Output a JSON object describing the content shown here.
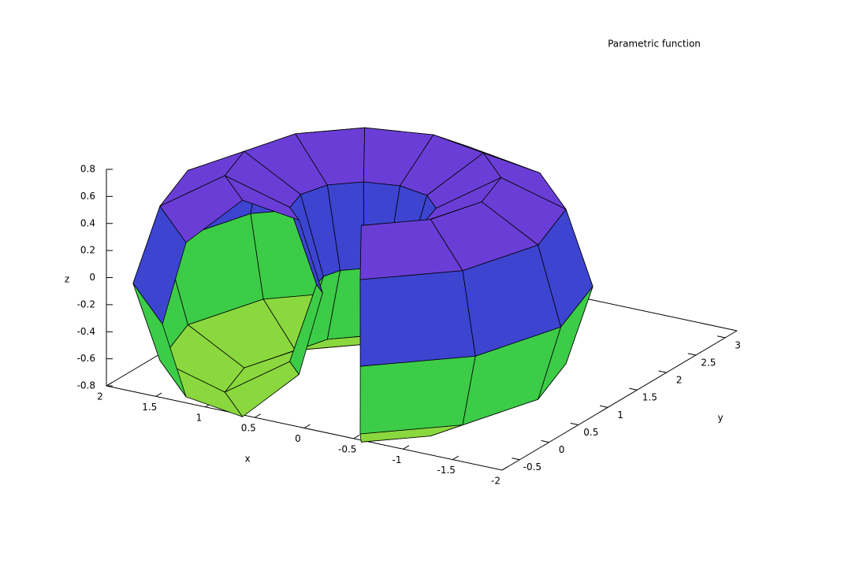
{
  "chart_data": {
    "type": "surface3d",
    "series": [
      {
        "name": "Parametric function",
        "x": [
          [
            1,
            0.88,
            0.6,
            0.32,
            0.2,
            0.32,
            0.6,
            0.88
          ],
          [
            1.73,
            1.53,
            1.04,
            0.55,
            0.35,
            0.55,
            1.04,
            1.53
          ],
          [
            2,
            1.77,
            1.2,
            0.63,
            0.4,
            0.63,
            1.2,
            1.77
          ],
          [
            1.73,
            1.53,
            1.04,
            0.55,
            0.35,
            0.55,
            1.04,
            1.53
          ],
          [
            1,
            0.88,
            0.6,
            0.32,
            0.2,
            0.32,
            0.6,
            0.88
          ],
          [
            0,
            0,
            0,
            0,
            0,
            0,
            0,
            0
          ],
          [
            -1,
            -0.88,
            -0.6,
            -0.32,
            -0.2,
            -0.32,
            -0.6,
            -0.88
          ],
          [
            -1.73,
            -1.53,
            -1.04,
            -0.55,
            -0.35,
            -0.55,
            -1.04,
            -1.53
          ],
          [
            -2,
            -1.77,
            -1.2,
            -0.63,
            -0.4,
            -0.63,
            -1.2,
            -1.77
          ],
          [
            -1.73,
            -1.53,
            -1.04,
            -0.55,
            -0.35,
            -0.55,
            -1.04,
            -1.53
          ],
          [
            -1,
            -0.88,
            -0.6,
            -0.32,
            -0.2,
            -0.32,
            -0.6,
            -0.88
          ]
        ],
        "y": [
          [
            -1.53,
            -1.33,
            -0.84,
            -0.35,
            -0.15,
            -0.35,
            -0.84,
            -1.33
          ],
          [
            -0.8,
            -0.68,
            -0.4,
            -0.12,
            0,
            -0.12,
            -0.4,
            -0.68
          ],
          [
            0.2,
            0.2,
            0.2,
            0.2,
            0.2,
            0.2,
            0.2,
            0.2
          ],
          [
            1.2,
            1.08,
            0.8,
            0.52,
            0.4,
            0.52,
            0.8,
            1.08
          ],
          [
            1.93,
            1.73,
            1.24,
            0.75,
            0.55,
            0.75,
            1.24,
            1.73
          ],
          [
            2.2,
            1.97,
            1.4,
            0.83,
            0.6,
            0.83,
            1.4,
            1.97
          ],
          [
            1.93,
            1.73,
            1.24,
            0.75,
            0.55,
            0.75,
            1.24,
            1.73
          ],
          [
            1.2,
            1.08,
            0.8,
            0.52,
            0.4,
            0.52,
            0.8,
            1.08
          ],
          [
            0.2,
            0.2,
            0.2,
            0.2,
            0.2,
            0.2,
            0.2,
            0.2
          ],
          [
            -0.8,
            -0.68,
            -0.4,
            -0.12,
            0,
            -0.12,
            -0.4,
            -0.68
          ],
          [
            -1.53,
            -1.33,
            -0.84,
            -0.35,
            -0.15,
            -0.35,
            -0.84,
            -1.33
          ]
        ],
        "z": [
          [
            0,
            0.57,
            0.8,
            0.57,
            0,
            -0.57,
            -0.8,
            -0.57
          ],
          [
            0,
            0.57,
            0.8,
            0.57,
            0,
            -0.57,
            -0.8,
            -0.57
          ],
          [
            0,
            0.57,
            0.8,
            0.57,
            0,
            -0.57,
            -0.8,
            -0.57
          ],
          [
            0,
            0.57,
            0.8,
            0.57,
            0,
            -0.57,
            -0.8,
            -0.57
          ],
          [
            0,
            0.57,
            0.8,
            0.57,
            0,
            -0.57,
            -0.8,
            -0.57
          ],
          [
            0,
            0.57,
            0.8,
            0.57,
            0,
            -0.57,
            -0.8,
            -0.57
          ],
          [
            0,
            0.57,
            0.8,
            0.57,
            0,
            -0.57,
            -0.8,
            -0.57
          ],
          [
            0,
            0.57,
            0.8,
            0.57,
            0,
            -0.57,
            -0.8,
            -0.57
          ],
          [
            0,
            0.57,
            0.8,
            0.57,
            0,
            -0.57,
            -0.8,
            -0.57
          ],
          [
            0,
            0.57,
            0.8,
            0.57,
            0,
            -0.57,
            -0.8,
            -0.57
          ],
          [
            0,
            0.57,
            0.8,
            0.57,
            0,
            -0.57,
            -0.8,
            -0.57
          ]
        ]
      }
    ],
    "palette": [
      "#8ad83e",
      "#3ccc48",
      "#3ed0c4",
      "#3c6ad0",
      "#3c44d0",
      "#6a3ed6"
    ],
    "xlabel": "x",
    "ylabel": "y",
    "zlabel": "z",
    "xlim": [
      -2,
      2
    ],
    "xticks": [
      -2,
      -1.5,
      -1,
      -0.5,
      0,
      0.5,
      1,
      1.5,
      2
    ],
    "ylim": [
      -0.8,
      3.2
    ],
    "yticks": [
      -0.5,
      0,
      0.5,
      1,
      1.5,
      2,
      2.5,
      3
    ],
    "zlim": [
      -0.8,
      0.8
    ],
    "zticks": [
      -0.8,
      -0.6,
      -0.4,
      -0.2,
      0,
      0.2,
      0.4,
      0.6,
      0.8
    ]
  }
}
